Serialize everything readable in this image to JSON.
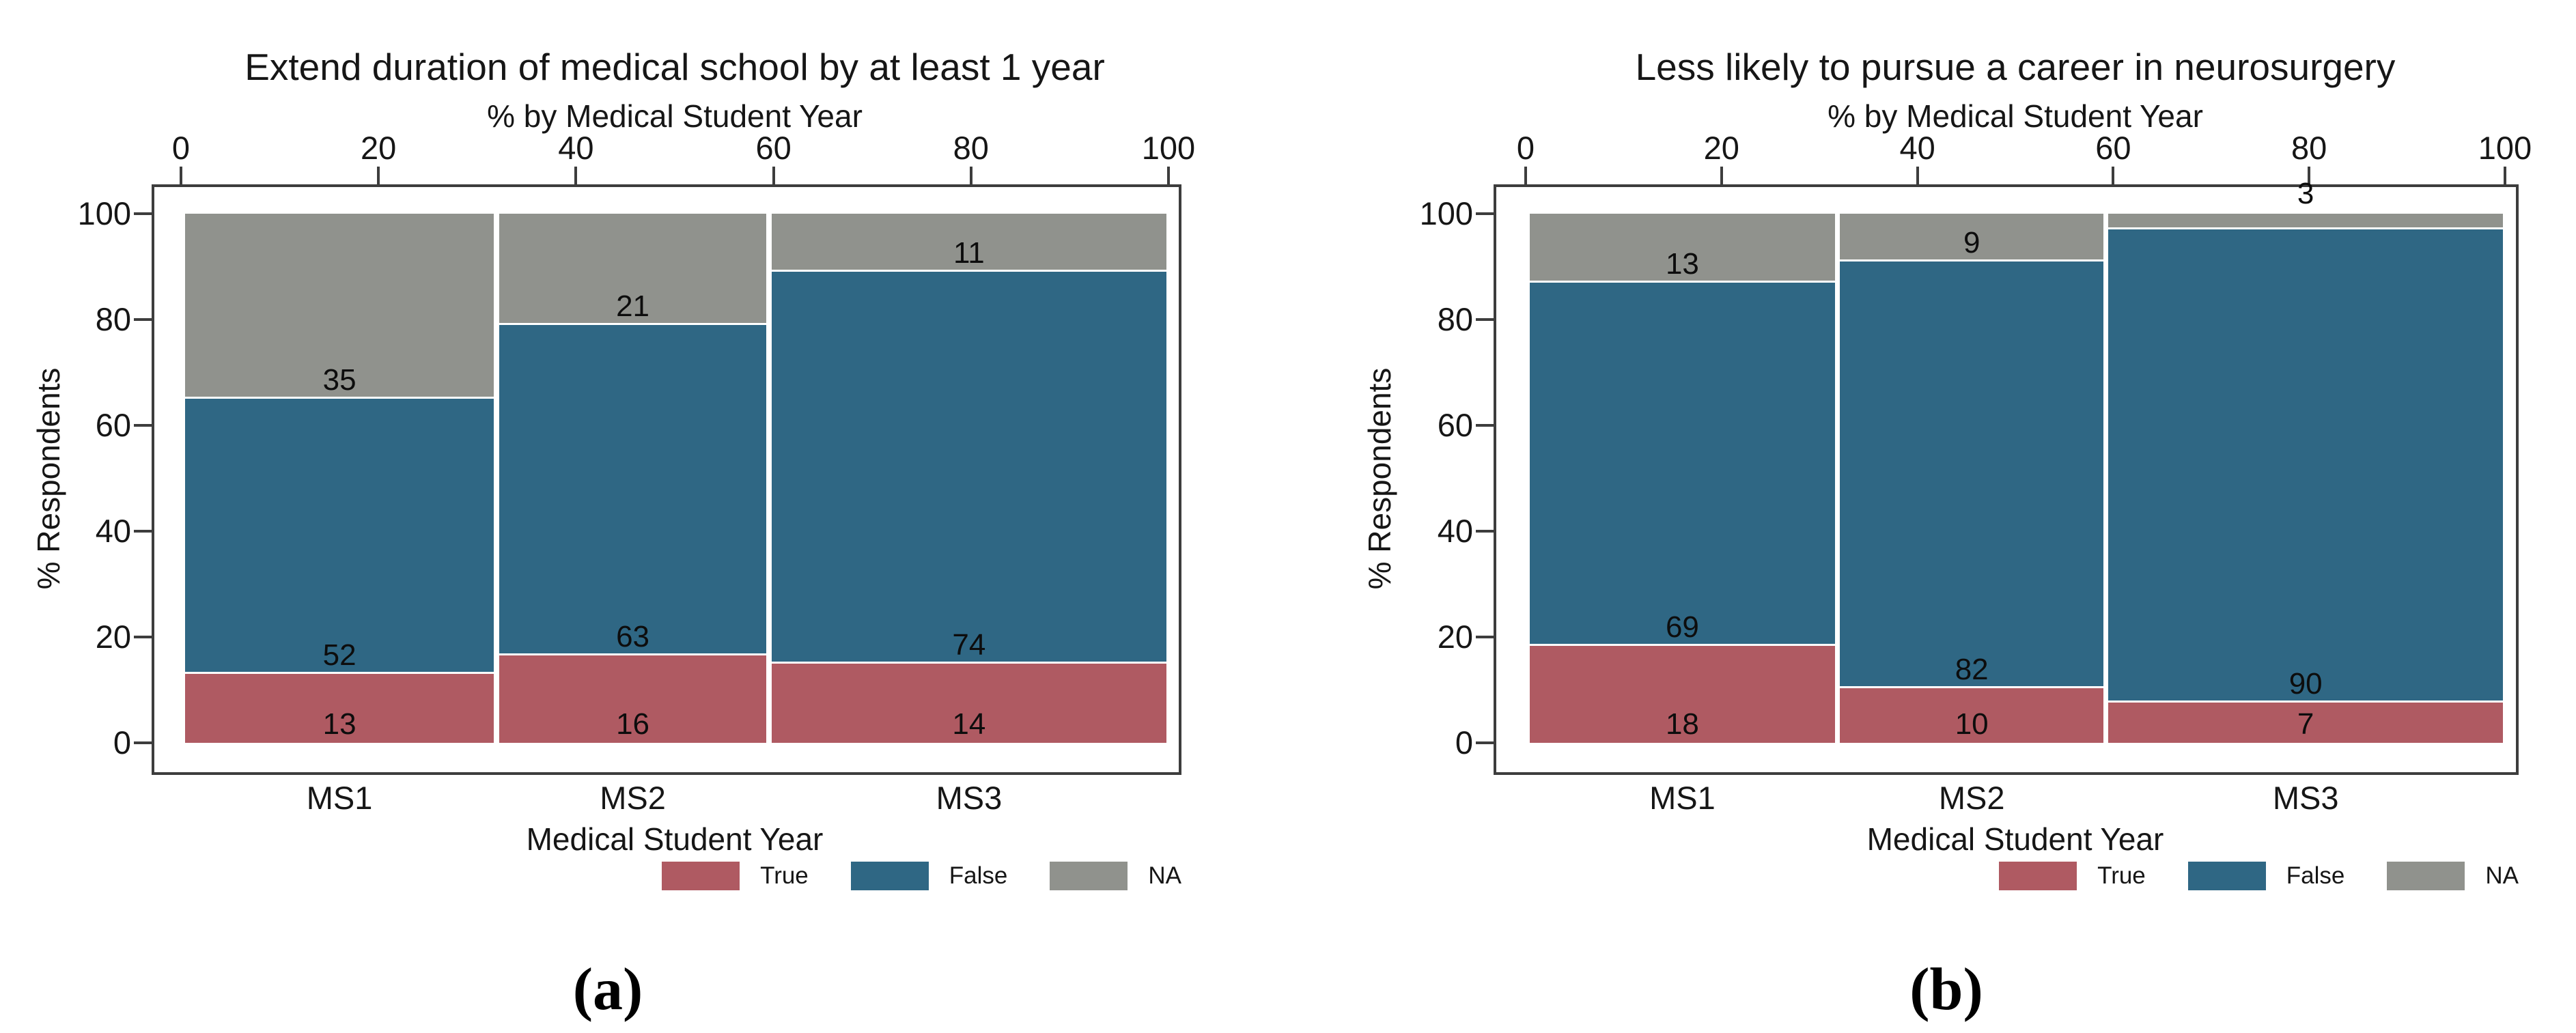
{
  "figure": {
    "captions": [
      "(a)",
      "(b)"
    ],
    "legend": {
      "position": "bottom-right",
      "items": [
        {
          "label": "True",
          "color": "#AF5A62"
        },
        {
          "label": "False",
          "color": "#2F6784"
        },
        {
          "label": "NA",
          "color": "#90928D"
        }
      ]
    }
  },
  "chart_data": [
    {
      "type": "mosaic",
      "title": "Extend duration of medical school by at least 1 year",
      "top_axis_title": "% by Medical Student Year",
      "xlabel": "Medical Student Year",
      "ylabel": "% Respondents",
      "x_ticks": [
        0,
        20,
        40,
        60,
        80,
        100
      ],
      "y_ticks": [
        0,
        20,
        40,
        60,
        80,
        100
      ],
      "ylim": [
        0,
        100
      ],
      "categories": [
        "MS1",
        "MS2",
        "MS3"
      ],
      "series_order": [
        "True",
        "False",
        "NA"
      ],
      "stacks": [
        {
          "category": "MS1",
          "x_range": [
            0.4,
            31.7
          ],
          "segments": [
            {
              "series": "True",
              "value": 13,
              "from": 0,
              "to": 13
            },
            {
              "series": "False",
              "value": 52,
              "from": 13,
              "to": 65
            },
            {
              "series": "NA",
              "value": 35,
              "from": 65,
              "to": 100
            }
          ]
        },
        {
          "category": "MS2",
          "x_range": [
            32.2,
            59.3
          ],
          "segments": [
            {
              "series": "True",
              "value": 16,
              "from": 0,
              "to": 16.5
            },
            {
              "series": "False",
              "value": 63,
              "from": 16.5,
              "to": 79
            },
            {
              "series": "NA",
              "value": 21,
              "from": 79,
              "to": 100
            }
          ]
        },
        {
          "category": "MS3",
          "x_range": [
            59.8,
            99.8
          ],
          "segments": [
            {
              "series": "True",
              "value": 14,
              "from": 0,
              "to": 15
            },
            {
              "series": "False",
              "value": 74,
              "from": 15,
              "to": 89
            },
            {
              "series": "NA",
              "value": 11,
              "from": 89,
              "to": 100
            }
          ]
        }
      ]
    },
    {
      "type": "mosaic",
      "title": "Less likely to pursue a career in neurosurgery",
      "top_axis_title": "% by Medical Student Year",
      "xlabel": "Medical Student Year",
      "ylabel": "% Respondents",
      "x_ticks": [
        0,
        20,
        40,
        60,
        80,
        100
      ],
      "y_ticks": [
        0,
        20,
        40,
        60,
        80,
        100
      ],
      "ylim": [
        0,
        100
      ],
      "categories": [
        "MS1",
        "MS2",
        "MS3"
      ],
      "series_order": [
        "True",
        "False",
        "NA"
      ],
      "stacks": [
        {
          "category": "MS1",
          "x_range": [
            0.4,
            31.6
          ],
          "segments": [
            {
              "series": "True",
              "value": 18,
              "from": 0,
              "to": 18.3
            },
            {
              "series": "False",
              "value": 69,
              "from": 18.3,
              "to": 87
            },
            {
              "series": "NA",
              "value": 13,
              "from": 87,
              "to": 100
            }
          ]
        },
        {
          "category": "MS2",
          "x_range": [
            32.1,
            59.0
          ],
          "segments": [
            {
              "series": "True",
              "value": 10,
              "from": 0,
              "to": 10.3
            },
            {
              "series": "False",
              "value": 82,
              "from": 10.3,
              "to": 91
            },
            {
              "series": "NA",
              "value": 9,
              "from": 91,
              "to": 100
            }
          ]
        },
        {
          "category": "MS3",
          "x_range": [
            59.5,
            99.8
          ],
          "segments": [
            {
              "series": "True",
              "value": 7,
              "from": 0,
              "to": 7.6
            },
            {
              "series": "False",
              "value": 90,
              "from": 7.6,
              "to": 97
            },
            {
              "series": "NA",
              "value": 3,
              "from": 97,
              "to": 100
            }
          ]
        }
      ]
    }
  ]
}
